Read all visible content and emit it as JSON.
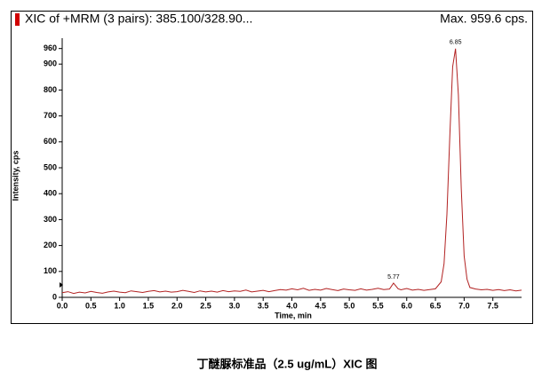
{
  "chart_data": {
    "type": "line",
    "title": "XIC of +MRM (3 pairs): 385.100/328.90...",
    "subtitle": "Max. 959.6 cps.",
    "x_label": "Time, min",
    "y_label": "Intensity, cps",
    "caption": "丁醚脲标准品（2.5 ug/mL）XIC 图",
    "x": [
      0,
      0.1,
      0.2,
      0.3,
      0.4,
      0.5,
      0.6,
      0.7,
      0.8,
      0.9,
      1.0,
      1.1,
      1.2,
      1.3,
      1.4,
      1.5,
      1.6,
      1.7,
      1.8,
      1.9,
      2.0,
      2.1,
      2.2,
      2.3,
      2.4,
      2.5,
      2.6,
      2.7,
      2.8,
      2.9,
      3.0,
      3.1,
      3.2,
      3.3,
      3.4,
      3.5,
      3.6,
      3.7,
      3.8,
      3.9,
      4.0,
      4.1,
      4.2,
      4.3,
      4.4,
      4.5,
      4.6,
      4.7,
      4.8,
      4.9,
      5.0,
      5.1,
      5.2,
      5.3,
      5.4,
      5.5,
      5.6,
      5.7,
      5.77,
      5.85,
      5.9,
      6.0,
      6.1,
      6.2,
      6.3,
      6.4,
      6.5,
      6.6,
      6.65,
      6.7,
      6.75,
      6.8,
      6.85,
      6.9,
      6.95,
      7.0,
      7.05,
      7.1,
      7.2,
      7.3,
      7.4,
      7.5,
      7.6,
      7.7,
      7.8,
      7.9,
      8.0
    ],
    "series": [
      {
        "color": "#b22222",
        "values": [
          18,
          22,
          15,
          20,
          17,
          23,
          19,
          16,
          21,
          24,
          20,
          18,
          25,
          22,
          19,
          23,
          26,
          21,
          24,
          20,
          22,
          27,
          23,
          19,
          25,
          21,
          24,
          20,
          26,
          22,
          25,
          23,
          28,
          21,
          24,
          27,
          22,
          26,
          30,
          28,
          33,
          29,
          35,
          27,
          31,
          28,
          34,
          30,
          26,
          32,
          29,
          27,
          33,
          28,
          31,
          35,
          30,
          32,
          55,
          33,
          29,
          34,
          28,
          31,
          27,
          30,
          33,
          60,
          130,
          320,
          620,
          890,
          959.6,
          780,
          420,
          160,
          70,
          38,
          32,
          29,
          31,
          27,
          30,
          26,
          29,
          25,
          28
        ]
      }
    ],
    "annotations": [
      {
        "label": "5.77",
        "x": 5.77,
        "y": 55
      },
      {
        "label": "6.85",
        "x": 6.85,
        "y": 959.6
      }
    ],
    "xlim": [
      0,
      8.0
    ],
    "ylim": [
      0,
      1000
    ],
    "xticks": [
      {
        "value": 0,
        "label": "0.0"
      },
      {
        "value": 0.5,
        "label": "0.5"
      },
      {
        "value": 1,
        "label": "1.0"
      },
      {
        "value": 1.5,
        "label": "1.5"
      },
      {
        "value": 2,
        "label": "2.0"
      },
      {
        "value": 2.5,
        "label": "2.5"
      },
      {
        "value": 3,
        "label": "3.0"
      },
      {
        "value": 3.5,
        "label": "3.5"
      },
      {
        "value": 4,
        "label": "4.0"
      },
      {
        "value": 4.5,
        "label": "4.5"
      },
      {
        "value": 5,
        "label": "5.0"
      },
      {
        "value": 5.5,
        "label": "5.5"
      },
      {
        "value": 6,
        "label": "6.0"
      },
      {
        "value": 6.5,
        "label": "6.5"
      },
      {
        "value": 7,
        "label": "7.0"
      },
      {
        "value": 7.5,
        "label": "7.5"
      }
    ],
    "yticks": [
      0,
      100,
      200,
      300,
      400,
      500,
      600,
      700,
      800,
      900,
      960
    ]
  }
}
